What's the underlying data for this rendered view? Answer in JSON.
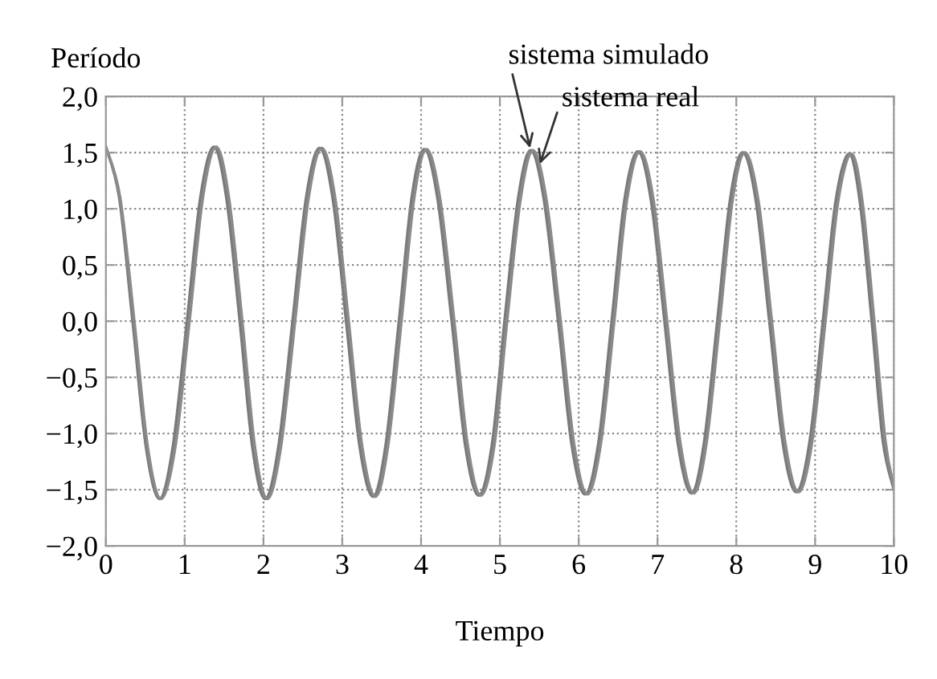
{
  "chart_data": {
    "type": "line",
    "xlabel": "Tiempo",
    "ylabel": "Período",
    "xlim": [
      0,
      10
    ],
    "xticks": [
      0,
      1,
      2,
      3,
      4,
      5,
      6,
      7,
      8,
      9,
      10
    ],
    "ylim": [
      -2.0,
      2.0
    ],
    "yticks": [
      {
        "value": -2.0,
        "label": "−2,0"
      },
      {
        "value": -1.5,
        "label": "−1,5"
      },
      {
        "value": -1.0,
        "label": "−1,0"
      },
      {
        "value": -0.5,
        "label": "−0,5"
      },
      {
        "value": 0.0,
        "label": "0,0"
      },
      {
        "value": 0.5,
        "label": "0,5"
      },
      {
        "value": 1.0,
        "label": "1,0"
      },
      {
        "value": 1.5,
        "label": "1,5"
      },
      {
        "value": 2.0,
        "label": "2,0"
      }
    ],
    "grid": true,
    "line_style": "solid",
    "marker": "none",
    "series": [
      {
        "color": "#7a7a7a",
        "x": [
          0,
          0.17,
          0.34,
          0.51,
          0.68,
          0.85,
          1.03,
          1.2,
          1.37,
          1.53,
          1.7,
          1.86,
          2.02,
          2.19,
          2.37,
          2.54,
          2.71,
          2.88,
          3.05,
          3.22,
          3.39,
          3.55,
          3.72,
          3.88,
          4.04,
          4.21,
          4.39,
          4.56,
          4.73,
          4.9,
          5.06,
          5.23,
          5.39,
          5.56,
          5.74,
          5.91,
          6.08,
          6.25,
          6.42,
          6.58,
          6.75,
          6.92,
          7.09,
          7.26,
          7.43,
          7.59,
          7.76,
          7.92,
          8.08,
          8.25,
          8.42,
          8.59,
          8.76,
          8.93,
          9.1,
          9.26,
          9.43,
          9.57,
          9.72,
          9.86,
          10
        ],
        "values": [
          1.55,
          1.1,
          0,
          -1.12,
          -1.58,
          -1.12,
          0,
          1.1,
          1.55,
          1.1,
          0,
          -1.12,
          -1.58,
          -1.12,
          0,
          1.09,
          1.54,
          1.09,
          0,
          -1.11,
          -1.56,
          -1.11,
          0,
          1.09,
          1.53,
          1.09,
          0,
          -1.1,
          -1.55,
          -1.1,
          0,
          1.08,
          1.52,
          1.08,
          0,
          -1.09,
          -1.54,
          -1.09,
          0,
          1.07,
          1.51,
          1.07,
          0,
          -1.09,
          -1.53,
          -1.09,
          0,
          1.07,
          1.5,
          1.07,
          0,
          -1.08,
          -1.52,
          -1.08,
          0,
          1.06,
          1.49,
          1.06,
          0,
          -1.06,
          -1.5
        ]
      },
      {
        "color": "#8a8a8a",
        "x": [
          0,
          0.18,
          0.36,
          0.53,
          0.7,
          0.88,
          1.06,
          1.23,
          1.4,
          1.56,
          1.73,
          1.89,
          2.05,
          2.22,
          2.4,
          2.57,
          2.74,
          2.91,
          3.08,
          3.25,
          3.42,
          3.58,
          3.75,
          3.91,
          4.07,
          4.24,
          4.42,
          4.59,
          4.76,
          4.93,
          5.09,
          5.26,
          5.42,
          5.59,
          5.77,
          5.94,
          6.11,
          6.28,
          6.45,
          6.61,
          6.78,
          6.95,
          7.12,
          7.29,
          7.46,
          7.62,
          7.79,
          7.95,
          8.11,
          8.28,
          8.45,
          8.62,
          8.79,
          8.96,
          9.13,
          9.29,
          9.46,
          9.6,
          9.75,
          9.89,
          10
        ],
        "values": [
          1.55,
          1.1,
          0,
          -1.12,
          -1.58,
          -1.12,
          0,
          1.1,
          1.55,
          1.1,
          0,
          -1.12,
          -1.58,
          -1.12,
          0,
          1.09,
          1.54,
          1.09,
          0,
          -1.11,
          -1.56,
          -1.11,
          0,
          1.09,
          1.53,
          1.09,
          0,
          -1.1,
          -1.55,
          -1.1,
          0,
          1.08,
          1.52,
          1.08,
          0,
          -1.09,
          -1.54,
          -1.09,
          0,
          1.07,
          1.51,
          1.07,
          0,
          -1.09,
          -1.53,
          -1.09,
          0,
          1.07,
          1.5,
          1.07,
          0,
          -1.08,
          -1.52,
          -1.08,
          0,
          1.06,
          1.49,
          1.06,
          0,
          -1.06,
          -1.48
        ]
      }
    ],
    "annotations": [
      {
        "text": "sistema simulado",
        "x": 5.39,
        "y": 1.52
      },
      {
        "text": "sistema real",
        "x": 5.5,
        "y": 1.38
      }
    ]
  }
}
